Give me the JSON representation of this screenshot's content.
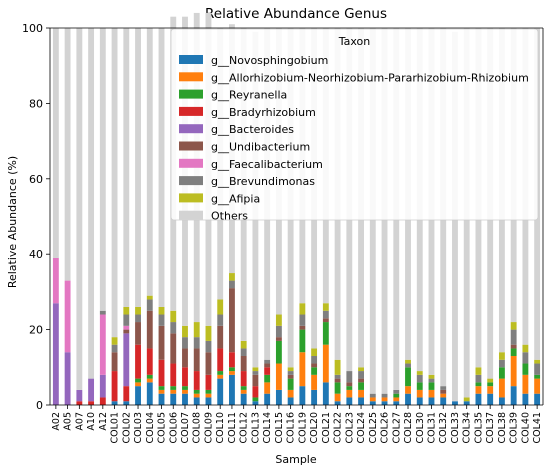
{
  "chart_data": {
    "type": "bar",
    "stacked": true,
    "title": "Relative Abundance Genus",
    "xlabel": "Sample",
    "ylabel": "Relative Abundance (%)",
    "ylim": [
      0,
      100
    ],
    "yticks": [
      0,
      20,
      40,
      60,
      80,
      100
    ],
    "grid": false,
    "legend_title": "Taxon",
    "legend_location": "top-right",
    "categories": [
      "A02",
      "A05",
      "A07",
      "A10",
      "A12",
      "COL01",
      "COL02",
      "COL03",
      "COL04",
      "COL05",
      "COL06",
      "COL07",
      "COL08",
      "COL09",
      "COL10",
      "COL11",
      "COL12",
      "COL13",
      "COL14",
      "COL15",
      "COL16",
      "COL19",
      "COL20",
      "COL21",
      "COL22",
      "COL23",
      "COL24",
      "COL25",
      "COL26",
      "COL27",
      "COL28",
      "COL30",
      "COL31",
      "COL32",
      "COL33",
      "COL34",
      "COL35",
      "COL37",
      "COL38",
      "COL39",
      "COL40",
      "COL41"
    ],
    "series": [
      {
        "name": "g__Novosphingobium",
        "color": "#1f77b4",
        "values": [
          0,
          0,
          0,
          0,
          0,
          1,
          1,
          5,
          6,
          3,
          3,
          3,
          2,
          2,
          7,
          8,
          3,
          1,
          3,
          4,
          2,
          5,
          4,
          6,
          1,
          2,
          2,
          1,
          1,
          1,
          3,
          2,
          2,
          2,
          1,
          1,
          3,
          3,
          2,
          5,
          3,
          3
        ]
      },
      {
        "name": "g__Allorhizobium-Neorhizobium-Pararhizobium-Rhizobium",
        "color": "#ff7f0e",
        "values": [
          0,
          0,
          0,
          0,
          0,
          0,
          0,
          1,
          1,
          1,
          1,
          1,
          1,
          1,
          1,
          1,
          1,
          0,
          3,
          7,
          2,
          9,
          4,
          10,
          2,
          2,
          2,
          1,
          1,
          1,
          2,
          2,
          2,
          1,
          0,
          0,
          2,
          2,
          5,
          8,
          5,
          4
        ]
      },
      {
        "name": "g__Reyranella",
        "color": "#2ca02c",
        "values": [
          0,
          0,
          0,
          0,
          0,
          0,
          0,
          1,
          1,
          1,
          1,
          1,
          1,
          1,
          1,
          1,
          1,
          1,
          2,
          6,
          3,
          6,
          2,
          6,
          3,
          1,
          2,
          0,
          0,
          1,
          5,
          2,
          2,
          0,
          0,
          0,
          1,
          1,
          3,
          2,
          3,
          1
        ]
      },
      {
        "name": "g__Bradyrhizobium",
        "color": "#d62728",
        "values": [
          0,
          0,
          1,
          1,
          2,
          8,
          4,
          9,
          7,
          7,
          6,
          5,
          5,
          4,
          6,
          4,
          4,
          3,
          2,
          0,
          0,
          0,
          0,
          0,
          0,
          0,
          0,
          0,
          0,
          0,
          0,
          0,
          0,
          0,
          0,
          0,
          0,
          0,
          0,
          0,
          0,
          0
        ]
      },
      {
        "name": "g__Bacteroides",
        "color": "#9467bd",
        "values": [
          27,
          14,
          3,
          6,
          6,
          0,
          14,
          0,
          0,
          0,
          0,
          0,
          0,
          0,
          0,
          0,
          0,
          0,
          0,
          0,
          0,
          0,
          0,
          0,
          0,
          0,
          0,
          0,
          0,
          0,
          0,
          0,
          0,
          0,
          0,
          0,
          0,
          0,
          0,
          0,
          0,
          0
        ]
      },
      {
        "name": "g__Undibacterium",
        "color": "#8c564b",
        "values": [
          0,
          0,
          0,
          0,
          0,
          5,
          1,
          6,
          10,
          9,
          8,
          5,
          6,
          6,
          6,
          17,
          4,
          3,
          1,
          1,
          1,
          1,
          1,
          1,
          1,
          1,
          1,
          0,
          0,
          0,
          0,
          0,
          0,
          1,
          0,
          0,
          0,
          0,
          0,
          1,
          0,
          0
        ]
      },
      {
        "name": "g__Faecalibacterium",
        "color": "#e377c2",
        "values": [
          12,
          19,
          0,
          0,
          16,
          0,
          1,
          0,
          0,
          0,
          0,
          0,
          0,
          0,
          0,
          0,
          0,
          0,
          0,
          0,
          0,
          0,
          0,
          0,
          0,
          0,
          0,
          0,
          0,
          0,
          0,
          0,
          0,
          0,
          0,
          0,
          0,
          0,
          0,
          0,
          0,
          0
        ]
      },
      {
        "name": "g__Brevundimonas",
        "color": "#7f7f7f",
        "values": [
          0,
          0,
          0,
          0,
          1,
          2,
          3,
          2,
          3,
          3,
          3,
          3,
          3,
          3,
          3,
          2,
          2,
          1,
          1,
          3,
          1,
          3,
          2,
          2,
          1,
          3,
          2,
          1,
          1,
          1,
          1,
          2,
          1,
          1,
          0,
          0,
          2,
          0,
          2,
          4,
          3,
          3
        ]
      },
      {
        "name": "g__Afipia",
        "color": "#bcbd22",
        "values": [
          0,
          0,
          0,
          0,
          0,
          2,
          2,
          2,
          1,
          2,
          3,
          3,
          4,
          4,
          4,
          2,
          2,
          1,
          0,
          3,
          1,
          3,
          2,
          2,
          4,
          0,
          1,
          0,
          0,
          0,
          1,
          1,
          1,
          0,
          0,
          1,
          2,
          1,
          2,
          2,
          2,
          1
        ]
      },
      {
        "name": "Others",
        "color": "#d3d3d3",
        "values": [
          61,
          67,
          96,
          93,
          75,
          82,
          74,
          74,
          71,
          74,
          78,
          82,
          82,
          83,
          72,
          66,
          83,
          89,
          88,
          76,
          90,
          73,
          85,
          73,
          88,
          91,
          90,
          97,
          97,
          96,
          88,
          91,
          92,
          95,
          98,
          98,
          90,
          93,
          86,
          78,
          84,
          88
        ]
      }
    ]
  }
}
